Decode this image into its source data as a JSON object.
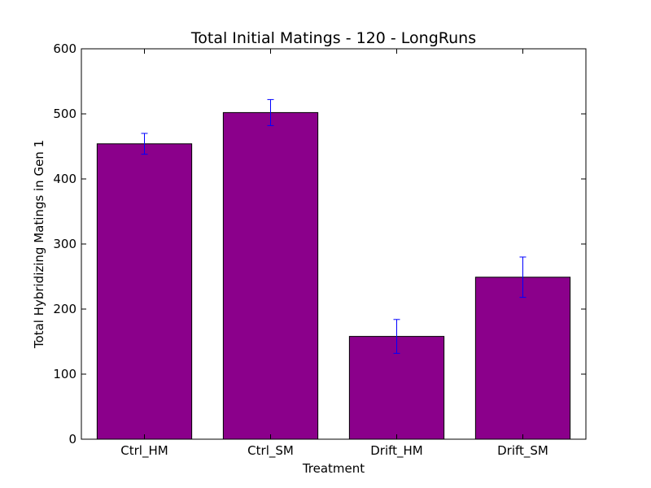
{
  "chart_data": {
    "type": "bar",
    "title": "Total Initial Matings - 120 - LongRuns",
    "xlabel": "Treatment",
    "ylabel": "Total Hybridizing Matings in Gen 1",
    "categories": [
      "Ctrl_HM",
      "Ctrl_SM",
      "Drift_HM",
      "Drift_SM"
    ],
    "values": [
      454,
      502,
      158,
      249
    ],
    "errors": [
      16,
      20,
      26,
      31
    ],
    "ylim": [
      0,
      600
    ],
    "yticks": [
      0,
      100,
      200,
      300,
      400,
      500,
      600
    ],
    "bar_color": "#8b008b",
    "error_color": "#0000ff",
    "grid": false
  }
}
